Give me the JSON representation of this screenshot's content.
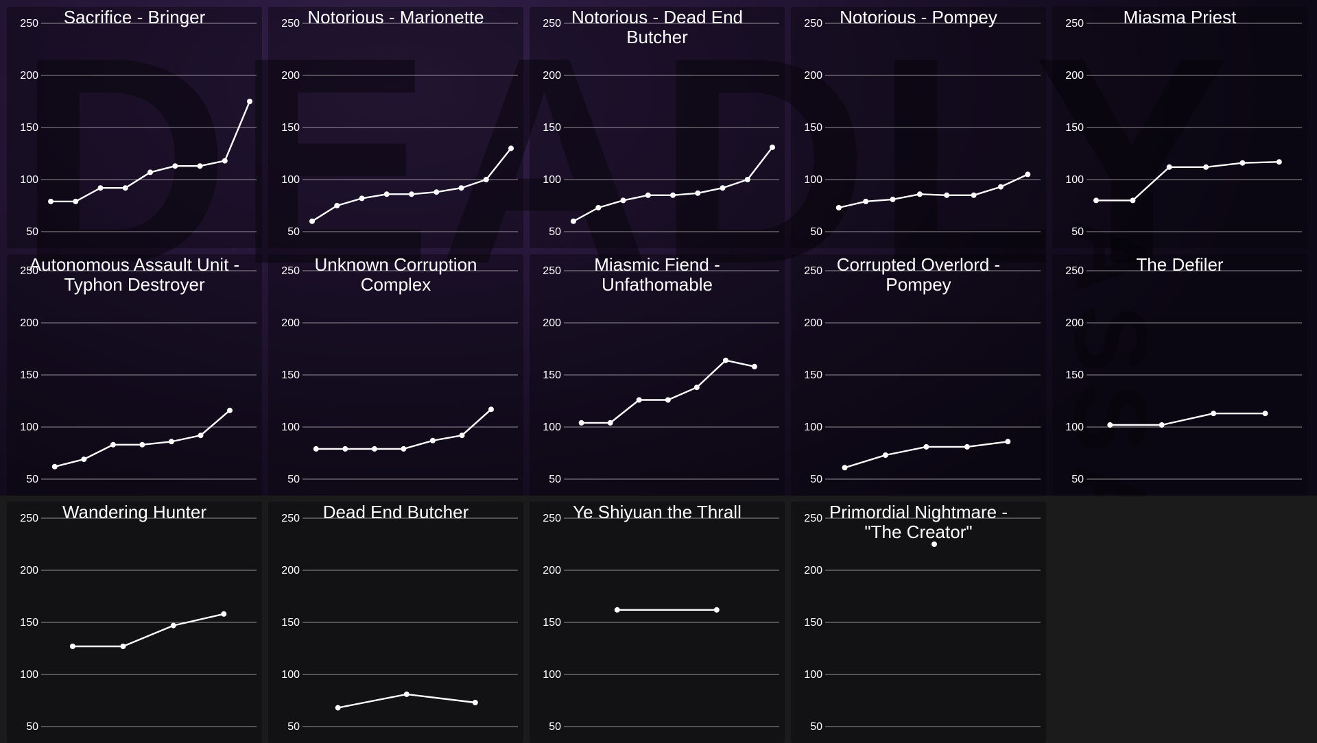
{
  "page": {
    "background": "#1b1b1b",
    "panel_overlay": "rgba(8,5,13,0.42)",
    "series_color": "#ffffff",
    "grid_color": "rgba(255,255,255,0.55)",
    "title_color": "#ffffff"
  },
  "watermark": {
    "word1": "DEADLY",
    "word2": "ASSAULT"
  },
  "axis": {
    "yticks": [
      250,
      200,
      150,
      100,
      50
    ],
    "ylim": [
      50,
      250
    ],
    "grid": true,
    "legend": "none"
  },
  "chart_data": [
    {
      "type": "line",
      "title": "Sacrifice - Bringer",
      "values": [
        79,
        79,
        92,
        92,
        107,
        113,
        113,
        118,
        175
      ],
      "x_span": [
        0,
        1
      ]
    },
    {
      "type": "line",
      "title": "Notorious - Marionette",
      "values": [
        60,
        75,
        82,
        86,
        86,
        88,
        92,
        100,
        130
      ],
      "x_span": [
        0,
        1
      ]
    },
    {
      "type": "line",
      "title": "Notorious - Dead End Butcher",
      "values": [
        60,
        73,
        80,
        85,
        85,
        87,
        92,
        100,
        131
      ],
      "x_span": [
        0,
        1
      ]
    },
    {
      "type": "line",
      "title": "Notorious - Pompey",
      "values": [
        73,
        79,
        81,
        86,
        85,
        85,
        93,
        105
      ],
      "x_span": [
        0.02,
        0.97
      ]
    },
    {
      "type": "line",
      "title": "Miasma Priest",
      "values": [
        80,
        80,
        112,
        112,
        116,
        117
      ],
      "x_span": [
        0,
        0.92
      ]
    },
    {
      "type": "line",
      "title": "Autonomous Assault Unit - Typhon Destroyer",
      "values": [
        62,
        69,
        83,
        83,
        86,
        92,
        116
      ],
      "x_span": [
        0.02,
        0.9
      ]
    },
    {
      "type": "line",
      "title": "Unknown Corruption Complex",
      "values": [
        79,
        79,
        79,
        79,
        87,
        92,
        117
      ],
      "x_span": [
        0.02,
        0.9
      ]
    },
    {
      "type": "line",
      "title": "Miasmic Fiend - Unfathomable",
      "values": [
        104,
        104,
        126,
        126,
        138,
        164,
        158
      ],
      "x_span": [
        0.04,
        0.91
      ]
    },
    {
      "type": "line",
      "title": "Corrupted Overlord - Pompey",
      "values": [
        61,
        73,
        81,
        81,
        86
      ],
      "x_span": [
        0.05,
        0.87
      ]
    },
    {
      "type": "line",
      "title": "The Defiler",
      "values": [
        102,
        102,
        113,
        113
      ],
      "x_span": [
        0.07,
        0.85
      ]
    },
    {
      "type": "line",
      "title": "Wandering Hunter",
      "values": [
        127,
        127,
        147,
        158
      ],
      "x_span": [
        0.11,
        0.87
      ]
    },
    {
      "type": "line",
      "title": "Dead End Butcher",
      "values": [
        68,
        81,
        73
      ],
      "x_span": [
        0.13,
        0.82
      ]
    },
    {
      "type": "line",
      "title": "Ye Shiyuan the Thrall",
      "values": [
        162,
        162
      ],
      "x_span": [
        0.22,
        0.72
      ]
    },
    {
      "type": "line",
      "title": "Primordial Nightmare - \"The Creator\"",
      "values": [
        225
      ],
      "x_span": [
        0.5,
        0.5
      ]
    }
  ]
}
